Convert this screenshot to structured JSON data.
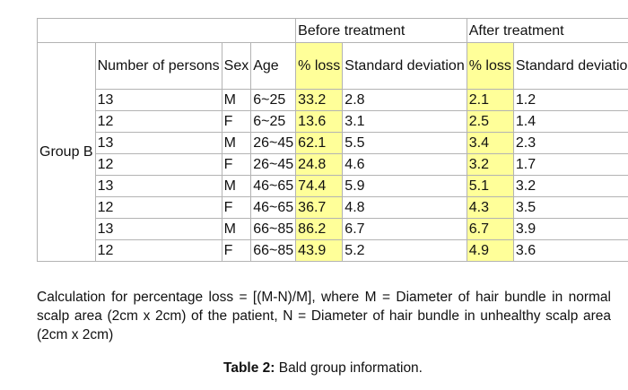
{
  "table": {
    "header_groups": {
      "before": "Before treatment",
      "after": "After treatment"
    },
    "columns": {
      "persons": "Number of persons",
      "sex": "Sex",
      "age": "Age",
      "before_loss": "% loss",
      "before_sd": "Standard deviation",
      "after_loss": "% loss",
      "after_sd": "Standard deviation"
    },
    "group_label": "Group B",
    "rows": [
      {
        "persons": "13",
        "sex": "M",
        "age": "6~25",
        "before_loss": "33.2",
        "before_sd": "2.8",
        "after_loss": "2.1",
        "after_sd": "1.2"
      },
      {
        "persons": "12",
        "sex": "F",
        "age": "6~25",
        "before_loss": "13.6",
        "before_sd": "3.1",
        "after_loss": "2.5",
        "after_sd": "1.4"
      },
      {
        "persons": "13",
        "sex": "M",
        "age": "26~45",
        "before_loss": "62.1",
        "before_sd": "5.5",
        "after_loss": "3.4",
        "after_sd": "2.3"
      },
      {
        "persons": "12",
        "sex": "F",
        "age": "26~45",
        "before_loss": "24.8",
        "before_sd": "4.6",
        "after_loss": "3.2",
        "after_sd": "1.7"
      },
      {
        "persons": "13",
        "sex": "M",
        "age": "46~65",
        "before_loss": "74.4",
        "before_sd": "5.9",
        "after_loss": "5.1",
        "after_sd": "3.2"
      },
      {
        "persons": "12",
        "sex": "F",
        "age": "46~65",
        "before_loss": "36.7",
        "before_sd": "4.8",
        "after_loss": "4.3",
        "after_sd": "3.5"
      },
      {
        "persons": "13",
        "sex": "M",
        "age": "66~85",
        "before_loss": "86.2",
        "before_sd": "6.7",
        "after_loss": "6.7",
        "after_sd": "3.9"
      },
      {
        "persons": "12",
        "sex": "F",
        "age": "66~85",
        "before_loss": "43.9",
        "before_sd": "5.2",
        "after_loss": "4.9",
        "after_sd": "3.6"
      }
    ],
    "highlight_color": "#ffff99",
    "border_color": "#b3b3b3"
  },
  "note": "Calculation for percentage loss = [(M-N)/M], where M = Diameter of hair bundle in normal scalp area (2cm x 2cm) of the patient, N = Diameter of hair bundle in unhealthy scalp area (2cm x 2cm)",
  "caption": {
    "label": "Table 2:",
    "text": " Bald group information."
  }
}
